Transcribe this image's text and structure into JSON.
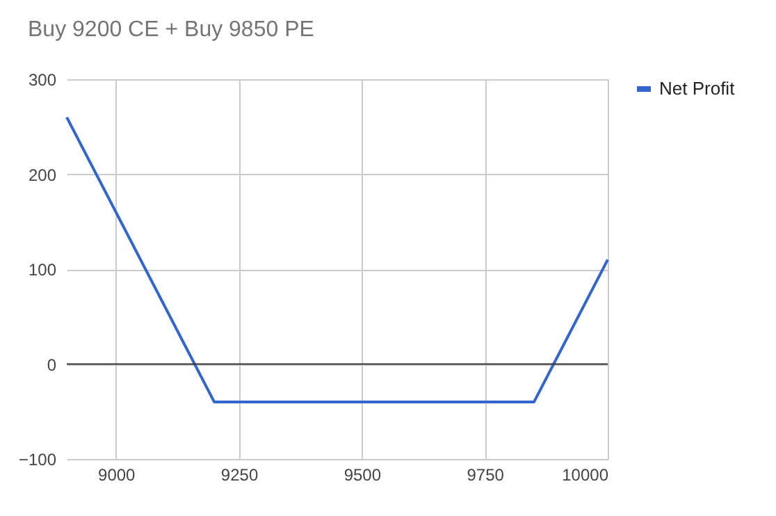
{
  "chart_data": {
    "type": "line",
    "title": "Buy 9200 CE + Buy 9850 PE",
    "x": [
      8900,
      9200,
      9850,
      10000
    ],
    "series": [
      {
        "name": "Net Profit",
        "color": "#3366cc",
        "values": [
          260,
          -40,
          -40,
          110
        ]
      }
    ],
    "xlim": [
      8900,
      10000
    ],
    "xticks": [
      9000,
      9250,
      9500,
      9750,
      10000
    ],
    "ylim": [
      -100,
      300
    ],
    "yticks": [
      -100,
      0,
      100,
      200,
      300
    ],
    "grid": true,
    "legend": "right",
    "marker": "none",
    "line_style": "solid",
    "ref_lines": [
      {
        "axis": "y",
        "value": 0,
        "color": "#333333"
      }
    ]
  }
}
